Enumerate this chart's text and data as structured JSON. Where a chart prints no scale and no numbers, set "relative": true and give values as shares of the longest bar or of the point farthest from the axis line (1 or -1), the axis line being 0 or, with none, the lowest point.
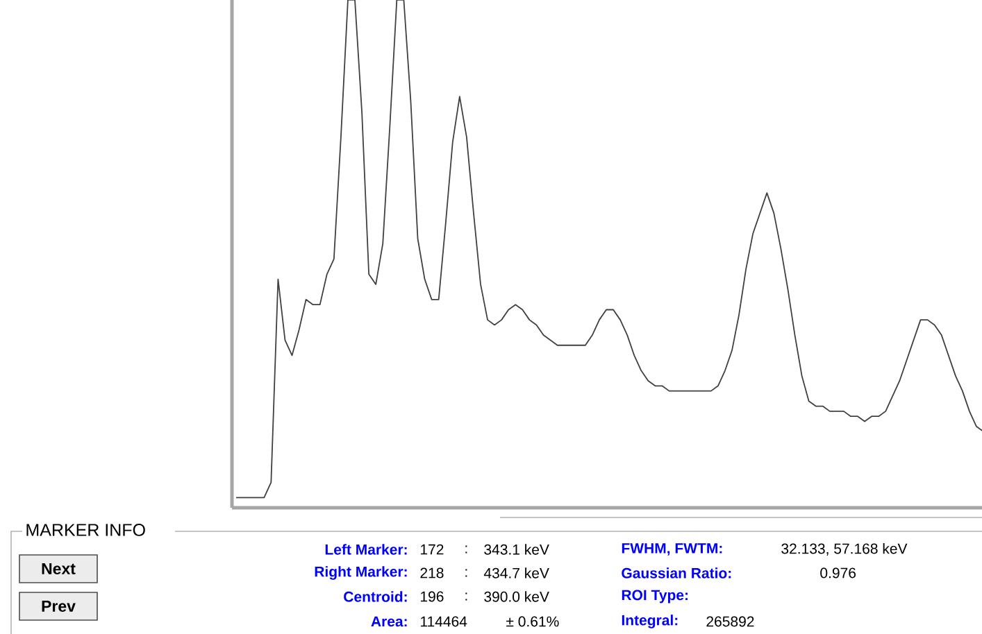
{
  "chart_data": {
    "type": "line",
    "relative": true,
    "color": "#404040",
    "categories": [
      null,
      null,
      null,
      null,
      null,
      null,
      null,
      null,
      null,
      null,
      null,
      null,
      null,
      null,
      null,
      null,
      null,
      null,
      null,
      null,
      null,
      null,
      null,
      null,
      null,
      null,
      null,
      null,
      null,
      null,
      null,
      null,
      null,
      null,
      null,
      null,
      null,
      null,
      null,
      null,
      null,
      null,
      null,
      null,
      null,
      null,
      null,
      null,
      null,
      null,
      null,
      null,
      null,
      null,
      null,
      null,
      null,
      null,
      null,
      null,
      null,
      null,
      null,
      null,
      null,
      null,
      null,
      null,
      null,
      null,
      null,
      null,
      null,
      null,
      null,
      null,
      null,
      null,
      null,
      null,
      null,
      null,
      null,
      null,
      null,
      null,
      null,
      null,
      null,
      null,
      null,
      null,
      null,
      null,
      null,
      null,
      null,
      null,
      null,
      null,
      null,
      null,
      null,
      null,
      null,
      null,
      null,
      null
    ],
    "values": [
      0.02,
      0.02,
      0.02,
      0.02,
      0.02,
      0.05,
      0.45,
      0.33,
      0.3,
      0.35,
      0.41,
      0.4,
      0.4,
      0.46,
      0.49,
      0.73,
      1,
      1,
      0.78,
      0.46,
      0.44,
      0.52,
      0.75,
      1,
      1,
      0.8,
      0.53,
      0.45,
      0.41,
      0.41,
      0.56,
      0.72,
      0.81,
      0.73,
      0.58,
      0.44,
      0.37,
      0.36,
      0.37,
      0.39,
      0.4,
      0.39,
      0.37,
      0.36,
      0.34,
      0.33,
      0.32,
      0.32,
      0.32,
      0.32,
      0.32,
      0.34,
      0.37,
      0.39,
      0.39,
      0.37,
      0.34,
      0.3,
      0.27,
      0.25,
      0.24,
      0.24,
      0.23,
      0.23,
      0.23,
      0.23,
      0.23,
      0.23,
      0.23,
      0.24,
      0.27,
      0.31,
      0.38,
      0.47,
      0.54,
      0.58,
      0.62,
      0.58,
      0.51,
      0.43,
      0.34,
      0.26,
      0.21,
      0.2,
      0.2,
      0.19,
      0.19,
      0.19,
      0.18,
      0.18,
      0.17,
      0.18,
      0.18,
      0.19,
      0.22,
      0.25,
      0.29,
      0.33,
      0.37,
      0.37,
      0.36,
      0.34,
      0.3,
      0.26,
      0.23,
      0.19,
      0.16,
      0.15
    ],
    "annotations": [
      "MARKER INFO",
      "Next",
      "Prev",
      "Left Marker:",
      "172",
      ":",
      "343.1 keV",
      "Right Marker:",
      "218",
      ":",
      "434.7 keV",
      "Centroid:",
      "196",
      ":",
      "390.0 keV",
      "Area:",
      "114464",
      "± 0.61%",
      "FWHM, FWTM:",
      "32.133, 57.168 keV",
      "Gaussian Ratio:",
      "0.976",
      "ROI Type:",
      "Integral:",
      "265892"
    ]
  }
}
